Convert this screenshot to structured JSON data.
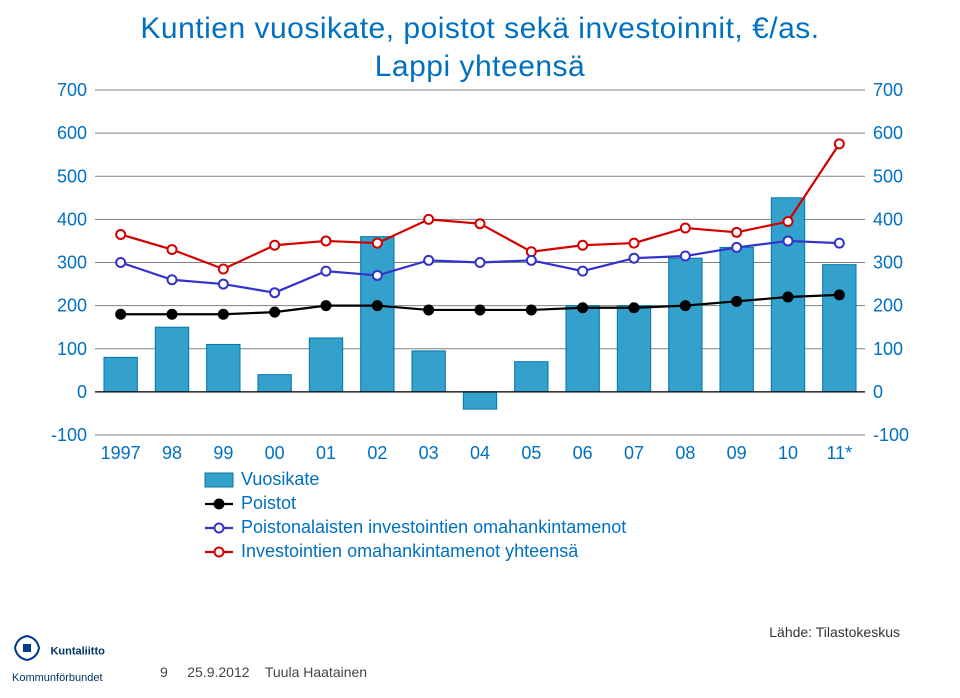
{
  "title_line1": "Kuntien vuosikate, poistot sekä investoinnit, €/as.",
  "title_line2": "Lappi yhteensä",
  "chart": {
    "type": "bar+line",
    "categories": [
      "1997",
      "98",
      "99",
      "00",
      "01",
      "02",
      "03",
      "04",
      "05",
      "06",
      "07",
      "08",
      "09",
      "10",
      "11*"
    ],
    "series": {
      "vuosikate": {
        "type": "bar",
        "color": "#33a1cc",
        "border": "#0077aa",
        "values": [
          80,
          150,
          110,
          40,
          125,
          360,
          95,
          -40,
          70,
          200,
          200,
          310,
          335,
          450,
          295
        ]
      },
      "poistot": {
        "type": "line",
        "color": "#000000",
        "marker": "circle-filled",
        "marker_fill": "#000000",
        "values": [
          180,
          180,
          180,
          185,
          200,
          200,
          190,
          190,
          190,
          195,
          195,
          200,
          210,
          220,
          225
        ]
      },
      "poistonalaisten": {
        "type": "line",
        "color": "#3333cc",
        "marker": "circle",
        "marker_fill": "#ffffff",
        "values": [
          300,
          260,
          250,
          230,
          280,
          270,
          305,
          300,
          305,
          280,
          310,
          315,
          335,
          350,
          345
        ]
      },
      "investointien_yht": {
        "type": "line",
        "color": "#d40000",
        "marker": "circle",
        "marker_fill": "#ffffff",
        "values": [
          365,
          330,
          285,
          340,
          350,
          345,
          400,
          390,
          325,
          340,
          345,
          380,
          370,
          395,
          575
        ]
      }
    },
    "ylim": [
      -100,
      700
    ],
    "ytick_step": 100,
    "yticks": [
      -100,
      0,
      100,
      200,
      300,
      400,
      500,
      600,
      700
    ],
    "grid_color": "#808080",
    "background_color": "#ffffff",
    "axis_fontsize": 18,
    "axis_color": "#0070c0",
    "tick_label_color": "#0070c0",
    "legend_items": [
      {
        "label": "Vuosikate",
        "swatch": "bar",
        "color": "#33a1cc"
      },
      {
        "label": "Poistot",
        "swatch": "line",
        "color": "#000000",
        "marker_fill": "#000000"
      },
      {
        "label": "Poistonalaisten investointien omahankintamenot",
        "swatch": "line",
        "color": "#3333cc",
        "marker_fill": "#ffffff"
      },
      {
        "label": "Investointien omahankintamenot yhteensä",
        "swatch": "line",
        "color": "#d40000",
        "marker_fill": "#ffffff"
      }
    ],
    "legend_fontsize": 18,
    "legend_text_color": "#0070c0"
  },
  "footer": {
    "page": "9",
    "date": "25.9.2012",
    "author": "Tuula Haatainen",
    "source_label": "Lähde: Tilastokeskus",
    "logo_top": "Kuntaliitto",
    "logo_bottom": "Kommunförbundet"
  }
}
